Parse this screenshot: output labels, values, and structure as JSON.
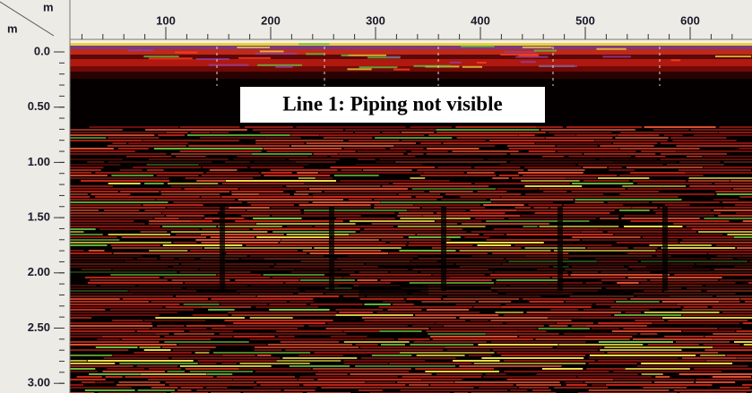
{
  "corner": {
    "top_unit": "m",
    "left_unit": "m"
  },
  "top_axis": {
    "labels": [
      "100",
      "200",
      "300",
      "400",
      "500",
      "600"
    ]
  },
  "left_axis": {
    "labels": [
      "0.0",
      "0.50",
      "1.00",
      "1.50",
      "2.00",
      "2.50",
      "3.00"
    ]
  },
  "annotation": "Line 1: Piping not visible"
}
